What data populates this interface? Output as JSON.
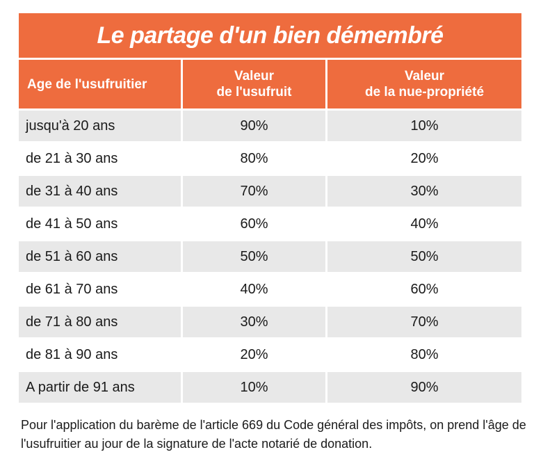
{
  "table": {
    "title": "Le partage d'un bien démembré",
    "headers": {
      "age": "Age de l'usufruitier",
      "usufruit": [
        "Valeur",
        "de l'usufruit"
      ],
      "nue": [
        "Valeur",
        "de la nue-propriété"
      ]
    },
    "rows": [
      {
        "age": "jusqu'à 20 ans",
        "usufruit": "90%",
        "nue": "10%"
      },
      {
        "age": "de 21 à 30 ans",
        "usufruit": "80%",
        "nue": "20%"
      },
      {
        "age": "de 31 à 40 ans",
        "usufruit": "70%",
        "nue": "30%"
      },
      {
        "age": "de 41 à 50 ans",
        "usufruit": "60%",
        "nue": "40%"
      },
      {
        "age": "de 51 à 60 ans",
        "usufruit": "50%",
        "nue": "50%"
      },
      {
        "age": "de 61 à 70 ans",
        "usufruit": "40%",
        "nue": "60%"
      },
      {
        "age": "de 71 à 80 ans",
        "usufruit": "30%",
        "nue": "70%"
      },
      {
        "age": "de 81 à 90 ans",
        "usufruit": "20%",
        "nue": "80%"
      },
      {
        "age": "A partir de 91 ans",
        "usufruit": "10%",
        "nue": "90%"
      }
    ]
  },
  "footnote": "Pour l'application du barème de l'article 669 du Code général des impôts, on prend l'âge de l'usufruitier au jour de la signature de l'acte notarié de donation.",
  "colors": {
    "accent": "#ee6c3e",
    "row_shade": "#e8e8e8"
  }
}
